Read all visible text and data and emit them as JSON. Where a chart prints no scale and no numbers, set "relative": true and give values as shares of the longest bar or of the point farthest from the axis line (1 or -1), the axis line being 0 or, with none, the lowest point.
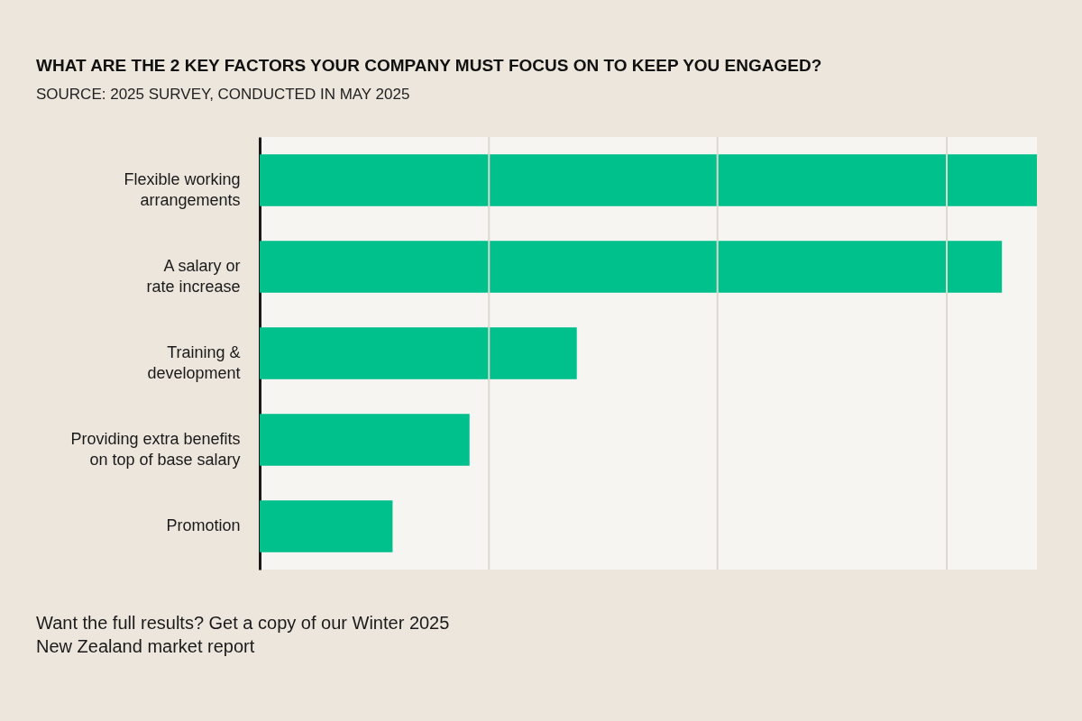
{
  "chart_data": {
    "type": "bar",
    "orientation": "horizontal",
    "relative": true,
    "title": "WHAT ARE THE 2 KEY FACTORS YOUR COMPANY MUST FOCUS ON TO KEEP YOU ENGAGED?",
    "subtitle": "SOURCE: 2025 SURVEY, CONDUCTED IN MAY 2025",
    "categories": [
      "Flexible working\narrangements",
      "A salary or\nrate increase",
      "Training &\ndevelopment",
      "Providing extra benefits\non top of base salary",
      "Promotion"
    ],
    "values": [
      1.0,
      0.955,
      0.408,
      0.27,
      0.171
    ],
    "color": "#00c08b",
    "ref_lines": [
      {
        "axis": "x",
        "value": 0.295,
        "color": "#dcd8d0"
      },
      {
        "axis": "x",
        "value": 0.589,
        "color": "#dcd8d0"
      },
      {
        "axis": "x",
        "value": 0.884,
        "color": "#dcd8d0"
      }
    ],
    "annotations": [
      "Want the full results? Get a copy of our Winter 2025\nNew Zealand market report"
    ]
  }
}
